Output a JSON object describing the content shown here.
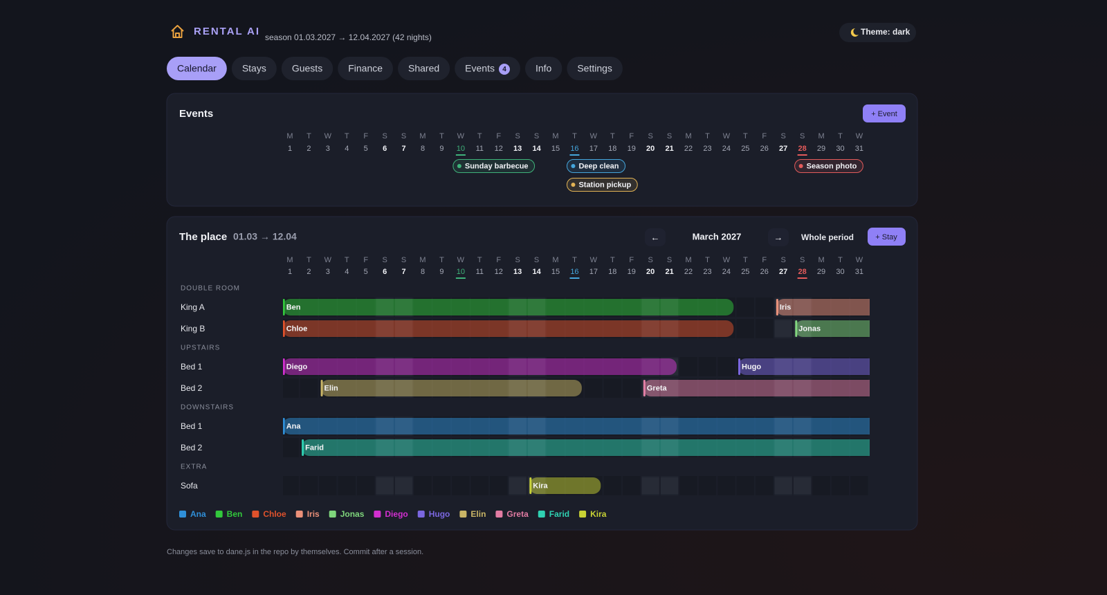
{
  "header": {
    "brand": "RENTAL AI",
    "season": "season 01.03.2027 → 12.04.2027 (42 nights)",
    "theme": "Theme: dark"
  },
  "tabs": [
    {
      "label": "Calendar",
      "active": true
    },
    {
      "label": "Stays"
    },
    {
      "label": "Guests"
    },
    {
      "label": "Finance"
    },
    {
      "label": "Shared"
    },
    {
      "label": "Events",
      "badge": "4"
    },
    {
      "label": "Info"
    },
    {
      "label": "Settings"
    }
  ],
  "days": [
    {
      "weekday": "M",
      "day": 1
    },
    {
      "weekday": "T",
      "day": 2
    },
    {
      "weekday": "W",
      "day": 3
    },
    {
      "weekday": "T",
      "day": 4
    },
    {
      "weekday": "F",
      "day": 5
    },
    {
      "weekday": "S",
      "day": 6,
      "weekend": true
    },
    {
      "weekday": "S",
      "day": 7,
      "weekend": true
    },
    {
      "weekday": "M",
      "day": 8
    },
    {
      "weekday": "T",
      "day": 9
    },
    {
      "weekday": "W",
      "day": 10
    },
    {
      "weekday": "T",
      "day": 11
    },
    {
      "weekday": "F",
      "day": 12
    },
    {
      "weekday": "S",
      "day": 13,
      "weekend": true
    },
    {
      "weekday": "S",
      "day": 14,
      "weekend": true
    },
    {
      "weekday": "M",
      "day": 15
    },
    {
      "weekday": "T",
      "day": 16
    },
    {
      "weekday": "W",
      "day": 17
    },
    {
      "weekday": "T",
      "day": 18
    },
    {
      "weekday": "F",
      "day": 19
    },
    {
      "weekday": "S",
      "day": 20,
      "weekend": true
    },
    {
      "weekday": "S",
      "day": 21,
      "weekend": true
    },
    {
      "weekday": "M",
      "day": 22
    },
    {
      "weekday": "T",
      "day": 23
    },
    {
      "weekday": "W",
      "day": 24
    },
    {
      "weekday": "T",
      "day": 25
    },
    {
      "weekday": "F",
      "day": 26
    },
    {
      "weekday": "S",
      "day": 27,
      "weekend": true
    },
    {
      "weekday": "S",
      "day": 28,
      "weekend": true
    },
    {
      "weekday": "M",
      "day": 29
    },
    {
      "weekday": "T",
      "day": 30
    },
    {
      "weekday": "W",
      "day": 31
    }
  ],
  "highlights": [
    {
      "day": 10,
      "color": "#3fb37a"
    },
    {
      "day": 16,
      "color": "#45a6dc"
    },
    {
      "day": 28,
      "color": "#e45b5b"
    }
  ],
  "events_panel": {
    "title": "Events",
    "add_button": "+ Event",
    "events": [
      {
        "label": "Sunday barbecue",
        "day": 10,
        "color": "#3fb37a"
      },
      {
        "label": "Deep clean",
        "day": 16,
        "color": "#45a6dc"
      },
      {
        "label": "Station pickup",
        "day": 16,
        "color": "#e3b455"
      },
      {
        "label": "Season photo",
        "day": 28,
        "color": "#e45b5b"
      }
    ]
  },
  "place_panel": {
    "title": "The place",
    "range": "01.03 → 12.04",
    "prev": "←",
    "month": "March 2027",
    "next": "→",
    "whole_period": "Whole period",
    "add_button": "+ Stay",
    "guests": [
      {
        "name": "Ana",
        "color": "#2f8fd8"
      },
      {
        "name": "Ben",
        "color": "#32c83c"
      },
      {
        "name": "Chloe",
        "color": "#e0522c"
      },
      {
        "name": "Iris",
        "color": "#eb9079"
      },
      {
        "name": "Jonas",
        "color": "#7fd67c"
      },
      {
        "name": "Diego",
        "color": "#d22fd0"
      },
      {
        "name": "Hugo",
        "color": "#7b67e0"
      },
      {
        "name": "Elin",
        "color": "#c9b566"
      },
      {
        "name": "Greta",
        "color": "#e27ca3"
      },
      {
        "name": "Farid",
        "color": "#2fd1b2"
      },
      {
        "name": "Kira",
        "color": "#c8d234"
      }
    ],
    "groups": [
      {
        "name": "DOUBLE ROOM",
        "rooms": [
          {
            "name": "King A",
            "stays": [
              {
                "guest": 1,
                "start": 1,
                "end": 25
              },
              {
                "guest": 3,
                "start": 27,
                "end": 43
              }
            ]
          },
          {
            "name": "King B",
            "stays": [
              {
                "guest": 2,
                "start": 1,
                "end": 25
              },
              {
                "guest": 4,
                "start": 28,
                "end": 43
              }
            ]
          }
        ]
      },
      {
        "name": "UPSTAIRS",
        "rooms": [
          {
            "name": "Bed 1",
            "stays": [
              {
                "guest": 5,
                "start": 1,
                "end": 22
              },
              {
                "guest": 6,
                "start": 25,
                "end": 43
              }
            ]
          },
          {
            "name": "Bed 2",
            "stays": [
              {
                "guest": 7,
                "start": 3,
                "end": 17
              },
              {
                "guest": 8,
                "start": 20,
                "end": 43
              }
            ]
          }
        ]
      },
      {
        "name": "DOWNSTAIRS",
        "rooms": [
          {
            "name": "Bed 1",
            "stays": [
              {
                "guest": 0,
                "start": 1,
                "end": 43
              }
            ]
          },
          {
            "name": "Bed 2",
            "stays": [
              {
                "guest": 9,
                "start": 2,
                "end": 43
              }
            ]
          }
        ]
      },
      {
        "name": "EXTRA",
        "rooms": [
          {
            "name": "Sofa",
            "stays": [
              {
                "guest": 10,
                "start": 14,
                "end": 18
              }
            ]
          }
        ]
      }
    ]
  },
  "footer": "Changes save to dane.js in the repo by themselves. Commit after a session."
}
